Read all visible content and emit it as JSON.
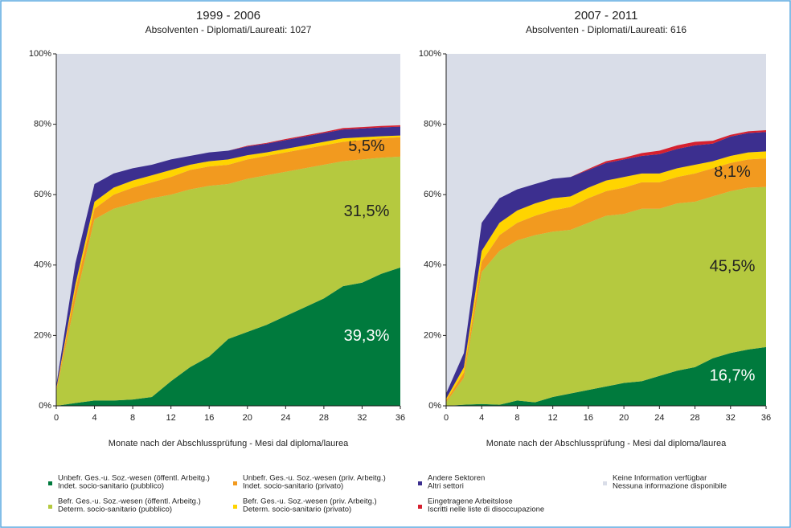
{
  "chart_data": [
    {
      "type": "stacked_area",
      "title": "1999 - 2006",
      "subtitle": "Absolventen - Diplomati/Laureati: 1027",
      "x_label": "Monate nach der Abschlussprüfung - Mesi dal diploma/laurea",
      "x": [
        0,
        2,
        4,
        6,
        8,
        10,
        12,
        14,
        16,
        18,
        20,
        22,
        24,
        26,
        28,
        30,
        32,
        34,
        36
      ],
      "xlim": [
        0,
        36
      ],
      "xticks": [
        0,
        4,
        8,
        12,
        16,
        20,
        24,
        28,
        32,
        36
      ],
      "ylim": [
        0,
        100
      ],
      "yticks": [
        {
          "value": 0,
          "label": "0%"
        },
        {
          "value": 20,
          "label": "20%"
        },
        {
          "value": 40,
          "label": "40%"
        },
        {
          "value": 60,
          "label": "60%"
        },
        {
          "value": 80,
          "label": "80%"
        },
        {
          "value": 100,
          "label": "100%"
        }
      ],
      "background_color": "#d9dde8",
      "series": [
        {
          "color": "#007a3d",
          "end_label": "39,3%",
          "label_color": "#ffffff",
          "values": [
            0,
            0.8,
            1.5,
            1.5,
            1.8,
            2.5,
            7,
            11,
            14,
            19,
            21,
            23,
            25.5,
            28,
            30.5,
            34,
            35,
            37.5,
            39.3
          ]
        },
        {
          "color": "#b5c93f",
          "end_label": "31,5%",
          "label_color": "#222222",
          "values": [
            4,
            29.2,
            51.5,
            54.5,
            55.7,
            56.5,
            53,
            50.5,
            48.5,
            44,
            43.5,
            42.5,
            41,
            39.5,
            38,
            35.5,
            35,
            33,
            31.5
          ]
        },
        {
          "color": "#f29a1f",
          "end_label": "5,5%",
          "label_color": "#222222",
          "values": [
            0.5,
            3,
            3,
            4,
            4.5,
            4.5,
            5,
            5.5,
            5.5,
            5.5,
            5.5,
            5.5,
            5.5,
            5.5,
            5.5,
            5.5,
            5.5,
            5.5,
            5.5
          ]
        },
        {
          "color": "#ffd400",
          "values": [
            0.3,
            1.5,
            2,
            2,
            2,
            2,
            2,
            1.5,
            1.5,
            1.5,
            1.2,
            1,
            1,
            1,
            1,
            1,
            0.8,
            0.6,
            0.5
          ]
        },
        {
          "color": "#3c2f8f",
          "values": [
            1,
            6,
            5,
            4,
            3.5,
            3,
            3,
            2.5,
            2.5,
            2.5,
            2.5,
            2.5,
            2.5,
            2.5,
            2.5,
            2.5,
            2.5,
            2.5,
            2.5
          ]
        },
        {
          "color": "#d6202f",
          "values": [
            0,
            0,
            0,
            0,
            0,
            0,
            0,
            0,
            0,
            0,
            0.2,
            0.2,
            0.3,
            0.3,
            0.3,
            0.4,
            0.4,
            0.4,
            0.4
          ]
        }
      ]
    },
    {
      "type": "stacked_area",
      "title": "2007 - 2011",
      "subtitle": "Absolventen - Diplomati/Laureati: 616",
      "x_label": "Monate nach der Abschlussprüfung - Mesi dal diploma/laurea",
      "x": [
        0,
        2,
        4,
        6,
        8,
        10,
        12,
        14,
        16,
        18,
        20,
        22,
        24,
        26,
        28,
        30,
        32,
        34,
        36
      ],
      "xlim": [
        0,
        36
      ],
      "xticks": [
        0,
        4,
        8,
        12,
        16,
        20,
        24,
        28,
        32,
        36
      ],
      "ylim": [
        0,
        100
      ],
      "yticks": [
        {
          "value": 0,
          "label": "0%"
        },
        {
          "value": 20,
          "label": "20%"
        },
        {
          "value": 40,
          "label": "40%"
        },
        {
          "value": 60,
          "label": "60%"
        },
        {
          "value": 80,
          "label": "80%"
        },
        {
          "value": 100,
          "label": "100%"
        }
      ],
      "background_color": "#d9dde8",
      "series": [
        {
          "name": [
            "Unbefr. Ges.-u. Soz.-wesen (öffentl. Arbeitg.)",
            "Indet. socio-sanitario (pubblico)"
          ],
          "color": "#007a3d",
          "end_label": "16,7%",
          "label_color": "#ffffff",
          "values": [
            0,
            0.3,
            0.5,
            0.3,
            1.5,
            1,
            2.5,
            3.5,
            4.5,
            5.5,
            6.5,
            7,
            8.5,
            10,
            11,
            13.5,
            15,
            16,
            16.7
          ]
        },
        {
          "name": [
            "Befr. Ges.-u. Soz.-wesen (öffentl. Arbeitg.)",
            "Determ. socio-sanitario (pubblico)"
          ],
          "color": "#b5c93f",
          "end_label": "45,5%",
          "label_color": "#222222",
          "values": [
            1,
            7.7,
            37.5,
            43.7,
            45.5,
            47.5,
            47,
            46.5,
            47.5,
            48.5,
            48,
            49,
            47.5,
            47.5,
            47,
            46,
            46,
            46,
            45.5
          ]
        },
        {
          "name": [
            "Unbefr. Ges.-u. Soz.-wesen (priv. Arbeitg.)",
            "Indet. socio-sanitario (privato)"
          ],
          "color": "#f29a1f",
          "end_label": "8,1%",
          "label_color": "#222222",
          "values": [
            0.5,
            1.5,
            3,
            4.5,
            5,
            5.5,
            6,
            6.5,
            7,
            7,
            7.5,
            7.5,
            7.5,
            7.5,
            8,
            8,
            8,
            8,
            8.1
          ]
        },
        {
          "name": [
            "Befr. Ges.-u. Soz.-wesen (priv. Arbeitg.)",
            "Determ. socio-sanitario (privato)"
          ],
          "color": "#ffd400",
          "values": [
            0.5,
            1.5,
            3,
            3.5,
            3.5,
            3.5,
            3.5,
            3,
            3,
            3,
            3,
            2.5,
            2.5,
            2.5,
            2.5,
            2,
            2,
            2,
            2
          ]
        },
        {
          "name": [
            "Andere Sektoren",
            "Altri settori"
          ],
          "color": "#3c2f8f",
          "values": [
            1.5,
            4,
            8,
            7,
            6,
            5.5,
            5.5,
            5.5,
            5,
            5,
            5,
            5,
            5.5,
            5.5,
            5.5,
            5,
            5.5,
            5.5,
            5.5
          ]
        },
        {
          "name": [
            "Eingetragene Arbeitslose",
            "Iscritti nelle liste di disoccupazione"
          ],
          "color": "#d6202f",
          "values": [
            0,
            0,
            0,
            0,
            0,
            0,
            0,
            0,
            0.3,
            0.5,
            0.5,
            0.8,
            1,
            1,
            1,
            0.8,
            0.5,
            0.5,
            0.5
          ]
        }
      ]
    }
  ],
  "no_info": {
    "name": [
      "Keine Information verfügbar",
      "Nessuna informazione disponibile"
    ],
    "color": "#d9dde8"
  }
}
